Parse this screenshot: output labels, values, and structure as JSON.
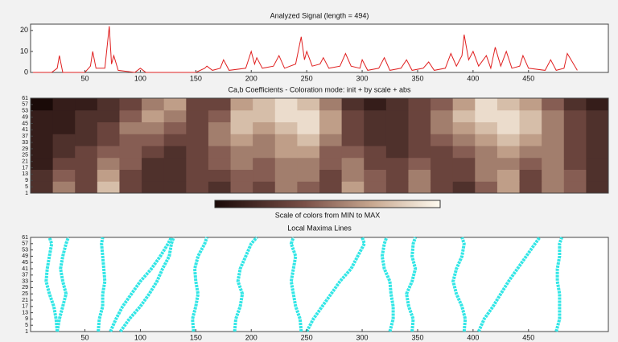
{
  "chart_data": [
    {
      "type": "line",
      "title": "Analyzed Signal  (length = 494)",
      "color": "#e02020",
      "xlim": [
        1,
        522
      ],
      "ylim": [
        0,
        23
      ],
      "xticks": [
        50,
        100,
        150,
        200,
        250,
        300,
        350,
        400,
        450
      ],
      "yticks": [
        0,
        10,
        20
      ],
      "x": [
        1,
        20,
        25,
        27,
        30,
        50,
        55,
        57,
        60,
        68,
        72,
        74,
        76,
        80,
        95,
        100,
        105,
        150,
        158,
        160,
        165,
        172,
        175,
        180,
        195,
        200,
        203,
        205,
        210,
        220,
        225,
        230,
        240,
        245,
        248,
        250,
        255,
        262,
        265,
        270,
        280,
        285,
        290,
        298,
        300,
        305,
        315,
        320,
        325,
        335,
        340,
        345,
        355,
        360,
        365,
        375,
        380,
        385,
        390,
        392,
        396,
        400,
        405,
        412,
        416,
        420,
        425,
        430,
        435,
        442,
        445,
        450,
        465,
        470,
        475,
        482,
        485,
        494
      ],
      "values": [
        0,
        0,
        2,
        8,
        0,
        0,
        3,
        10,
        2,
        2,
        22,
        4,
        8,
        1,
        0,
        2,
        0,
        0,
        2,
        3,
        1,
        2,
        6,
        1,
        2,
        10,
        4,
        7,
        2,
        3,
        8,
        2,
        4,
        17,
        6,
        10,
        3,
        4,
        7,
        2,
        3,
        9,
        3,
        2,
        6,
        1,
        2,
        7,
        1,
        2,
        6,
        1,
        2,
        5,
        1,
        2,
        9,
        3,
        8,
        18,
        6,
        10,
        3,
        8,
        2,
        12,
        3,
        10,
        2,
        3,
        8,
        2,
        1,
        6,
        1,
        2,
        9,
        1
      ]
    },
    {
      "type": "heatmap",
      "title": "Ca,b Coefficients - Coloration mode: init + by scale + abs",
      "xlim": [
        1,
        522
      ],
      "ylim": [
        1,
        61
      ],
      "zlim": [
        0,
        9
      ],
      "yticks": [
        1,
        5,
        9,
        13,
        17,
        21,
        25,
        29,
        33,
        37,
        41,
        45,
        49,
        53,
        57,
        61
      ],
      "colorbar_label": "Scale of colors from MIN to MAX",
      "values": [
        [
          2,
          5,
          3,
          7,
          3,
          2,
          2,
          3,
          2,
          4,
          3,
          5,
          4,
          3,
          6,
          4,
          3,
          5,
          3,
          2,
          4,
          6,
          3,
          5,
          4,
          2
        ],
        [
          2,
          4,
          3,
          6,
          3,
          2,
          2,
          3,
          3,
          4,
          4,
          5,
          5,
          3,
          5,
          4,
          3,
          5,
          3,
          3,
          5,
          6,
          3,
          5,
          4,
          2
        ],
        [
          1,
          3,
          3,
          5,
          4,
          2,
          2,
          3,
          4,
          5,
          4,
          5,
          5,
          4,
          5,
          3,
          3,
          4,
          3,
          3,
          5,
          5,
          4,
          5,
          3,
          2
        ],
        [
          1,
          2,
          3,
          4,
          4,
          3,
          2,
          3,
          4,
          5,
          5,
          6,
          6,
          4,
          4,
          3,
          2,
          3,
          3,
          4,
          5,
          6,
          5,
          5,
          3,
          2
        ],
        [
          1,
          2,
          2,
          3,
          4,
          4,
          3,
          3,
          5,
          6,
          5,
          6,
          7,
          5,
          3,
          2,
          2,
          3,
          4,
          5,
          6,
          7,
          6,
          5,
          3,
          2
        ],
        [
          1,
          1,
          2,
          3,
          5,
          5,
          4,
          3,
          5,
          7,
          6,
          7,
          8,
          6,
          3,
          2,
          2,
          3,
          5,
          6,
          7,
          8,
          7,
          5,
          3,
          2
        ],
        [
          1,
          1,
          2,
          2,
          4,
          6,
          5,
          3,
          4,
          7,
          7,
          8,
          8,
          6,
          3,
          2,
          2,
          3,
          5,
          7,
          8,
          8,
          7,
          5,
          3,
          2
        ],
        [
          0,
          1,
          1,
          2,
          3,
          5,
          6,
          3,
          3,
          6,
          7,
          8,
          7,
          5,
          2,
          1,
          2,
          3,
          4,
          6,
          8,
          7,
          6,
          4,
          2,
          1
        ]
      ]
    },
    {
      "type": "maxima",
      "title": "Local Maxima Lines",
      "color": "#33e6e6",
      "xlim": [
        1,
        522
      ],
      "ylim": [
        1,
        61
      ],
      "xticks": [
        50,
        100,
        150,
        200,
        250,
        300,
        350,
        400,
        450
      ],
      "yticks": [
        1,
        5,
        9,
        13,
        17,
        21,
        25,
        29,
        33,
        37,
        41,
        45,
        49,
        53,
        57,
        61
      ],
      "y": [
        1,
        9,
        17,
        25,
        33,
        41,
        49,
        57,
        61
      ],
      "series": [
        {
          "x": [
            25,
            24,
            22,
            18,
            15,
            16,
            18,
            20,
            18
          ]
        },
        {
          "x": [
            25,
            27,
            30,
            33,
            30,
            28,
            30,
            33,
            35
          ]
        },
        {
          "x": [
            62,
            63,
            66,
            66,
            68,
            67,
            66,
            65,
            66
          ]
        },
        {
          "x": [
            73,
            78,
            84,
            92,
            100,
            110,
            118,
            125,
            128
          ]
        },
        {
          "x": [
            82,
            90,
            100,
            108,
            115,
            120,
            126,
            128,
            130
          ]
        },
        {
          "x": [
            148,
            147,
            150,
            152,
            150,
            149,
            152,
            158,
            160
          ]
        },
        {
          "x": [
            185,
            186,
            190,
            192,
            188,
            190,
            195,
            200,
            205
          ]
        },
        {
          "x": [
            245,
            244,
            240,
            238,
            236,
            238,
            240,
            236,
            238
          ]
        },
        {
          "x": [
            250,
            256,
            264,
            272,
            280,
            290,
            296,
            302,
            300
          ]
        },
        {
          "x": [
            325,
            328,
            328,
            326,
            325,
            320,
            318,
            320,
            322
          ]
        },
        {
          "x": [
            345,
            346,
            342,
            340,
            345,
            348,
            345,
            346,
            348
          ]
        },
        {
          "x": [
            392,
            393,
            390,
            385,
            382,
            385,
            390,
            392,
            390
          ]
        },
        {
          "x": [
            405,
            410,
            418,
            425,
            432,
            440,
            448,
            456,
            460
          ]
        },
        {
          "x": [
            475,
            478,
            478,
            478,
            476,
            476,
            478,
            478,
            480
          ]
        }
      ]
    }
  ]
}
